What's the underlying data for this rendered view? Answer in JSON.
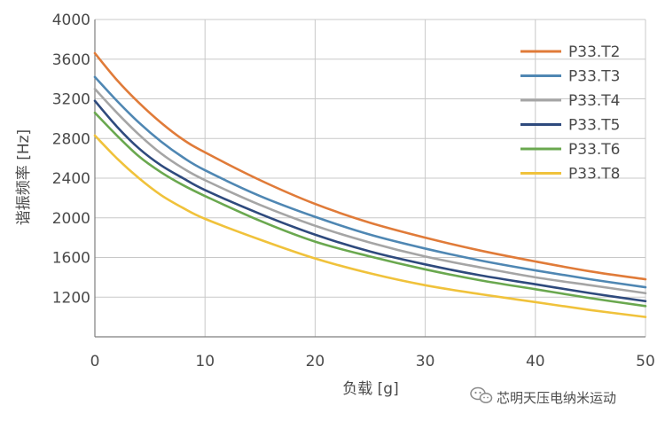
{
  "chart_data": {
    "type": "line",
    "title": "",
    "xlabel": "负载 [g]",
    "ylabel": "谐振频率 [Hz]",
    "xlim": [
      0,
      50
    ],
    "ylim": [
      800,
      4000
    ],
    "x_ticks": [
      0,
      10,
      20,
      30,
      40,
      50
    ],
    "y_ticks": [
      1200,
      1600,
      2000,
      2400,
      2800,
      3200,
      3600,
      4000
    ],
    "grid": true,
    "legend_position": "top-right",
    "x": [
      0,
      2,
      4,
      6,
      8,
      10,
      15,
      20,
      25,
      30,
      35,
      40,
      45,
      50
    ],
    "series": [
      {
        "name": "P33.T2",
        "color": "#e07b39",
        "values": [
          3660,
          3390,
          3160,
          2960,
          2790,
          2660,
          2380,
          2140,
          1950,
          1800,
          1670,
          1560,
          1460,
          1380
        ]
      },
      {
        "name": "P33.T3",
        "color": "#4f87b3",
        "values": [
          3420,
          3180,
          2960,
          2770,
          2610,
          2480,
          2220,
          2010,
          1830,
          1690,
          1570,
          1470,
          1380,
          1300
        ]
      },
      {
        "name": "P33.T4",
        "color": "#a5a5a5",
        "values": [
          3300,
          3060,
          2840,
          2650,
          2500,
          2380,
          2130,
          1920,
          1750,
          1610,
          1500,
          1400,
          1320,
          1240
        ]
      },
      {
        "name": "P33.T5",
        "color": "#2e4a7d",
        "values": [
          3180,
          2920,
          2700,
          2530,
          2400,
          2280,
          2040,
          1830,
          1660,
          1530,
          1420,
          1330,
          1240,
          1160
        ]
      },
      {
        "name": "P33.T6",
        "color": "#6aa84f",
        "values": [
          3060,
          2830,
          2620,
          2460,
          2330,
          2220,
          1970,
          1760,
          1610,
          1480,
          1370,
          1280,
          1190,
          1110
        ]
      },
      {
        "name": "P33.T8",
        "color": "#f0c23b",
        "values": [
          2830,
          2600,
          2400,
          2230,
          2100,
          1990,
          1780,
          1590,
          1440,
          1320,
          1230,
          1150,
          1070,
          1000
        ]
      }
    ],
    "grid_color": "#c8c8c8",
    "axis_color": "#7f7f7f"
  },
  "watermark": {
    "text": "芯明天压电纳米运动",
    "icon": "wechat-icon"
  }
}
